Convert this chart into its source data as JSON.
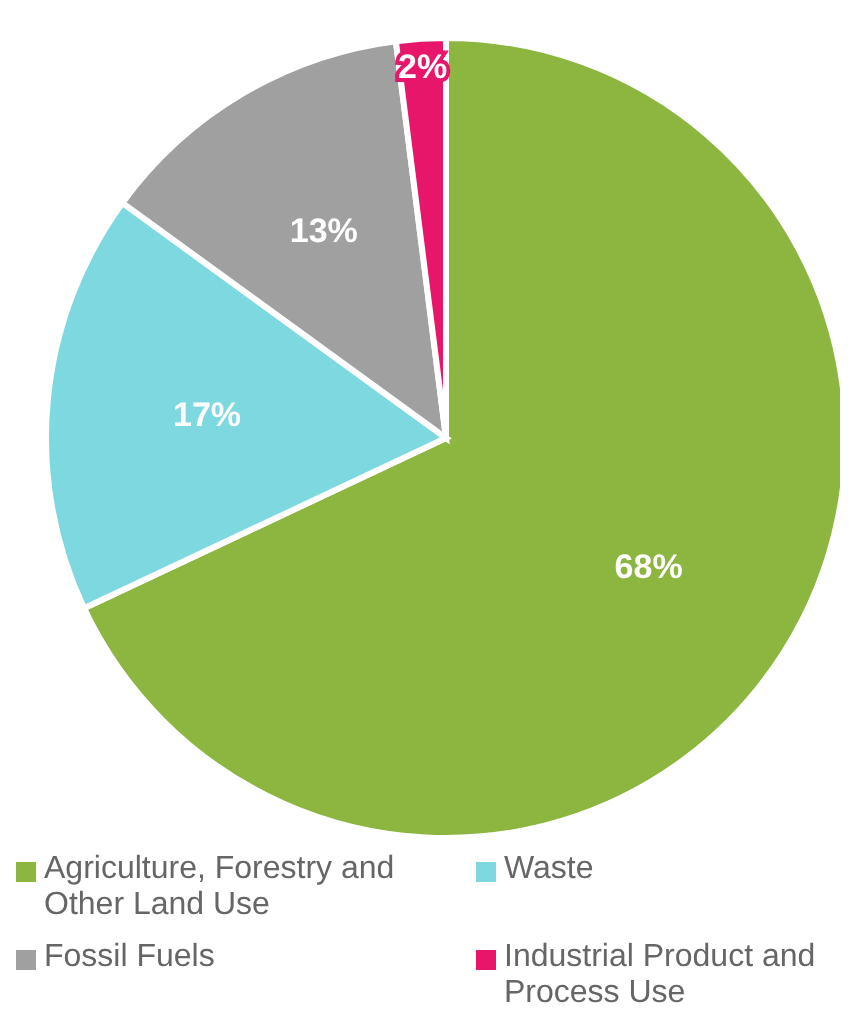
{
  "chart_data": {
    "type": "pie",
    "categories": [
      "Agriculture, Forestry and Other Land Use",
      "Waste",
      "Fossil Fuels",
      "Industrial Product and Process Use"
    ],
    "values": [
      68,
      17,
      13,
      2
    ],
    "colors": [
      "#8cb640",
      "#7dd8e0",
      "#a0a0a0",
      "#e8166b"
    ],
    "value_labels": [
      "68%",
      "17%",
      "13%",
      "2%"
    ],
    "legend": "bottom"
  }
}
